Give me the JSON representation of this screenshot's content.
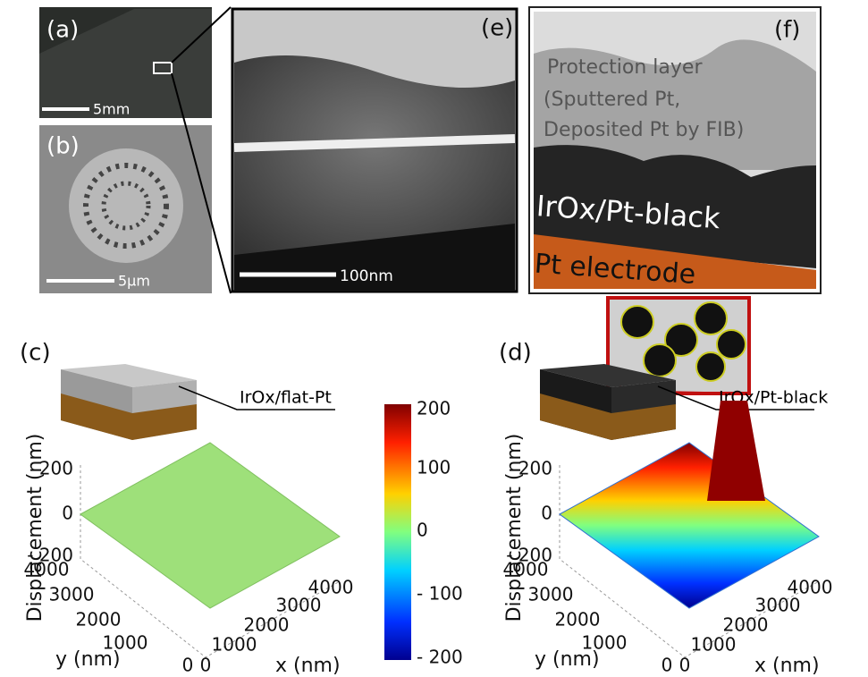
{
  "panels": {
    "a": {
      "label": "(a)",
      "scale_bar": "5mm"
    },
    "b": {
      "label": "(b)",
      "scale_bar": "5μm"
    },
    "e": {
      "label": "(e)",
      "scale_bar": "100nm"
    },
    "f": {
      "label": "(f)",
      "protection_lines": [
        "Protection layer",
        "(Sputtered Pt,",
        "Deposited Pt by FIB)"
      ],
      "film": "IrOx/Pt-black",
      "electrode": "Pt electrode"
    },
    "c": {
      "label": "(c)",
      "callout": "IrOx/flat-Pt",
      "z_axis": "Displacement (nm)",
      "z_ticks": [
        "200",
        "0",
        "- 200"
      ],
      "y_axis": "y (nm)",
      "y_ticks": [
        "4000",
        "3000",
        "2000",
        "1000",
        "0"
      ],
      "x_axis": "x (nm)",
      "x_ticks": [
        "0",
        "1000",
        "2000",
        "3000",
        "4000"
      ]
    },
    "d": {
      "label": "(d)",
      "callout": "IrOx/Pt-black",
      "z_axis": "Displacement (nm)",
      "z_ticks": [
        "200",
        "0",
        "- 200"
      ],
      "y_axis": "y (nm)",
      "y_ticks": [
        "4000",
        "3000",
        "2000",
        "1000",
        "0"
      ],
      "x_axis": "x (nm)",
      "x_ticks": [
        "0",
        "1000",
        "2000",
        "3000",
        "4000"
      ]
    },
    "colorbar": {
      "ticks": [
        "200",
        "100",
        "0",
        "- 100",
        "- 200"
      ]
    }
  }
}
